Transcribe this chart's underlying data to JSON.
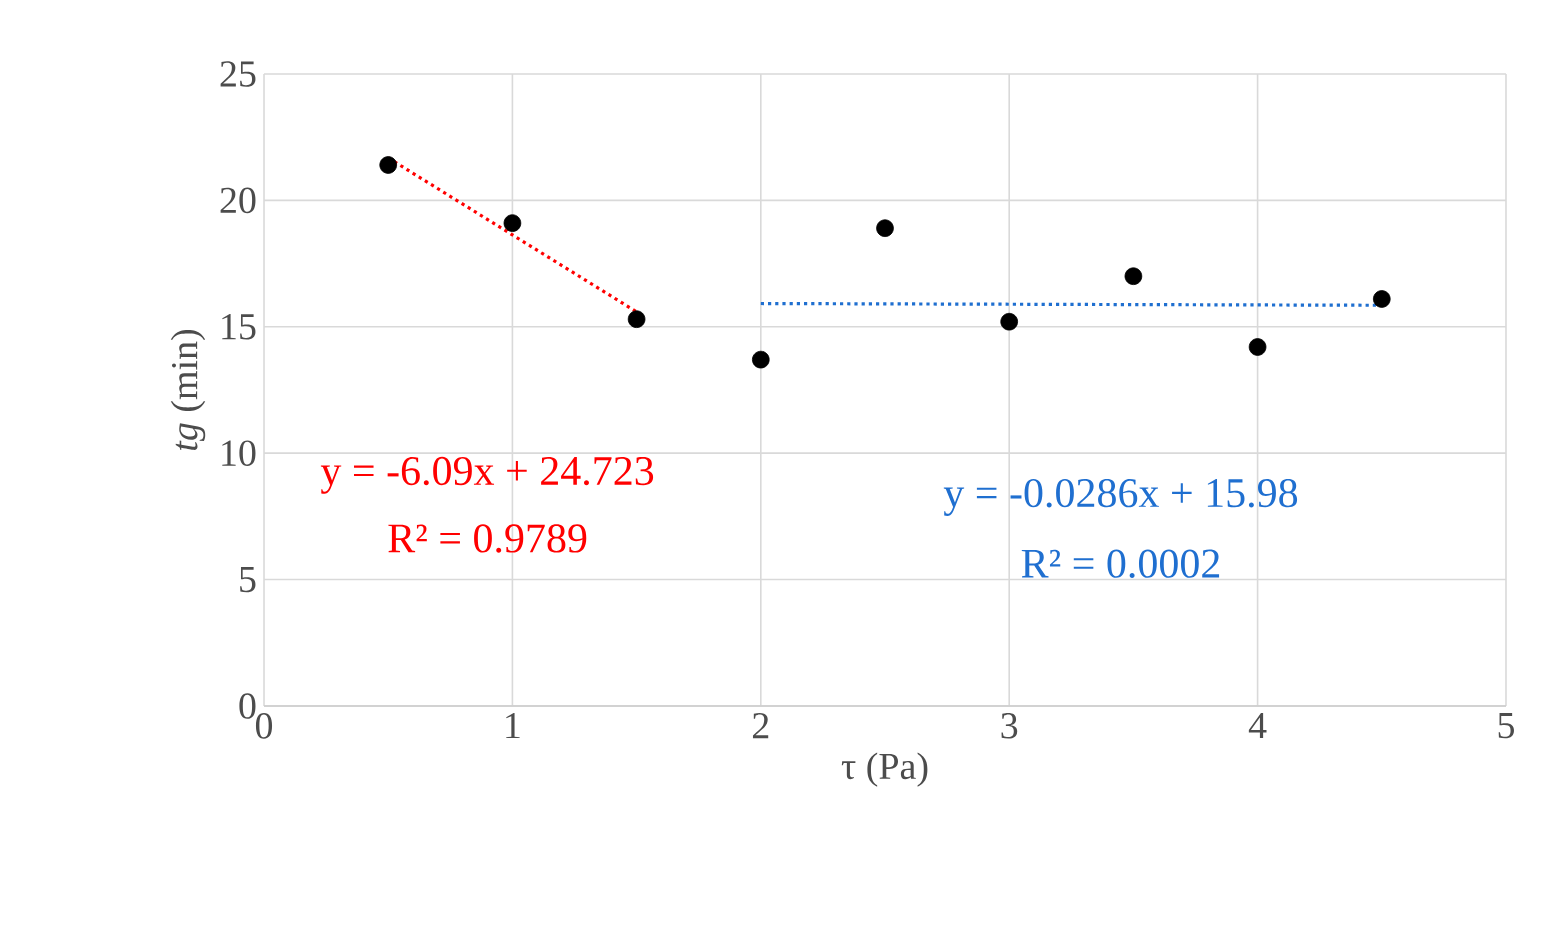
{
  "chart_data": {
    "type": "scatter",
    "xlabel": "τ (Pa)",
    "ylabel": "*tg* (min)",
    "xlim": [
      0,
      5
    ],
    "xticks": [
      0,
      1,
      2,
      3,
      4,
      5
    ],
    "ylim": [
      0,
      25
    ],
    "yticks": [
      0,
      5,
      10,
      15,
      20,
      25
    ],
    "grid": true,
    "marker": "circle",
    "series": [
      {
        "color": "#000000",
        "x": [
          0.5,
          1,
          1.5,
          2,
          2.5,
          3,
          3.5,
          4,
          4.5
        ],
        "values": [
          21.4,
          19.1,
          15.3,
          13.7,
          18.9,
          15.2,
          17.0,
          14.2,
          16.1
        ]
      },
      {
        "type": "line",
        "color": "#ff0000",
        "line_style": "dotted",
        "marker": "none",
        "x": [
          0.5,
          1.5
        ],
        "values": [
          21.68,
          15.59
        ]
      },
      {
        "type": "line",
        "color": "#1f6fd0",
        "line_style": "dotted",
        "marker": "none",
        "x": [
          2,
          4.5
        ],
        "values": [
          15.92,
          15.85
        ]
      }
    ],
    "annotations": [
      "y = -6.09x + 24.723",
      "R² = 0.9789",
      "y = -0.0286x + 15.98",
      "R² = 0.0002"
    ]
  }
}
